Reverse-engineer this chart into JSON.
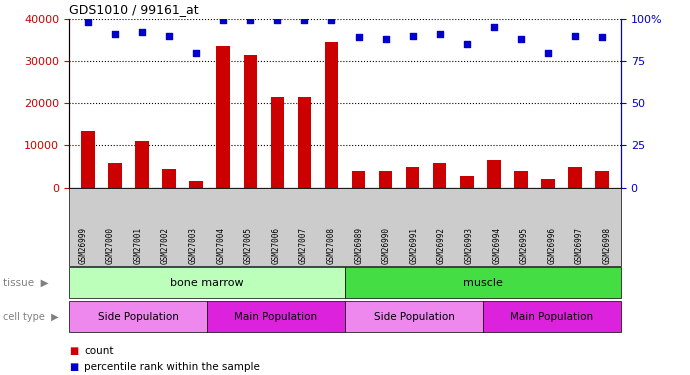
{
  "title": "GDS1010 / 99161_at",
  "samples": [
    "GSM26999",
    "GSM27000",
    "GSM27001",
    "GSM27002",
    "GSM27003",
    "GSM27004",
    "GSM27005",
    "GSM27006",
    "GSM27007",
    "GSM27008",
    "GSM26989",
    "GSM26990",
    "GSM26991",
    "GSM26992",
    "GSM26993",
    "GSM26994",
    "GSM26995",
    "GSM26996",
    "GSM26997",
    "GSM26998"
  ],
  "counts": [
    13500,
    5800,
    11000,
    4500,
    1500,
    33500,
    31500,
    21500,
    21500,
    34500,
    3800,
    3800,
    4800,
    5800,
    2800,
    6500,
    4000,
    2000,
    4800,
    3800
  ],
  "percentile": [
    98,
    91,
    92,
    90,
    80,
    99,
    99,
    99,
    99,
    99,
    89,
    88,
    90,
    91,
    85,
    95,
    88,
    80,
    90,
    89
  ],
  "ylim_left": [
    0,
    40000
  ],
  "ylim_right": [
    0,
    100
  ],
  "yticks_left": [
    0,
    10000,
    20000,
    30000,
    40000
  ],
  "yticks_right": [
    0,
    25,
    50,
    75,
    100
  ],
  "tissue_labels": [
    "bone marrow",
    "muscle"
  ],
  "tissue_ranges": [
    [
      0,
      9
    ],
    [
      10,
      19
    ]
  ],
  "tissue_colors": [
    "#bbffbb",
    "#44dd44"
  ],
  "cell_type_labels": [
    "Side Population",
    "Main Population",
    "Side Population",
    "Main Population"
  ],
  "cell_type_ranges": [
    [
      0,
      4
    ],
    [
      5,
      9
    ],
    [
      10,
      14
    ],
    [
      15,
      19
    ]
  ],
  "cell_type_colors": [
    "#ee88ee",
    "#dd22dd",
    "#ee88ee",
    "#dd22dd"
  ],
  "bar_color": "#cc0000",
  "dot_color": "#0000cc",
  "bar_width": 0.5,
  "dot_size": 18,
  "tick_label_bg": "#cccccc",
  "spine_color": "#000000"
}
